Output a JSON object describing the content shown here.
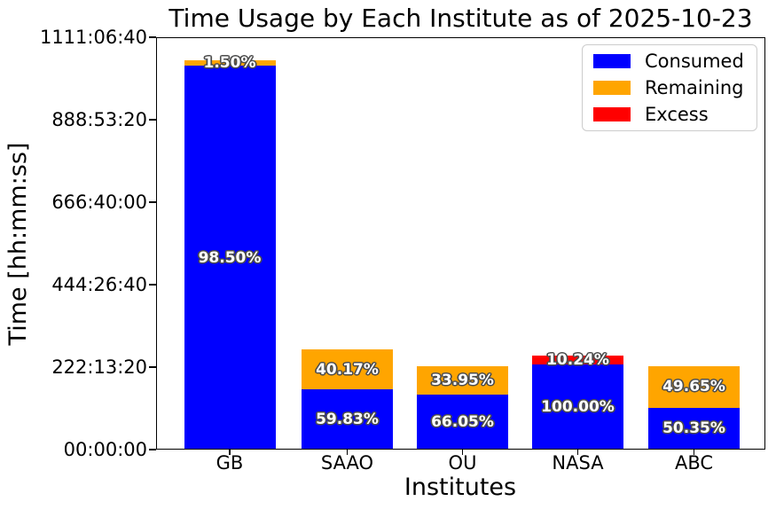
{
  "title": "Time Usage by Each Institute as of 2025-10-23",
  "axes": {
    "ylabel": "Time [hh:mm:ss]",
    "xlabel": "Institutes",
    "y_ticks": [
      "1111:06:40",
      "888:53:20",
      "666:40:00",
      "444:26:40",
      "222:13:20",
      "00:00:00"
    ],
    "x_ticks": [
      "GB",
      "SAAO",
      "OU",
      "NASA",
      "ABC"
    ]
  },
  "legend": {
    "items": [
      {
        "label": "Consumed",
        "color": "#0000ff"
      },
      {
        "label": "Remaining",
        "color": "#ffa500"
      },
      {
        "label": "Excess",
        "color": "#ff0000"
      }
    ]
  },
  "colors": {
    "consumed": "#0000ff",
    "remaining": "#ffa500",
    "excess": "#ff0000",
    "bar_label_fill": "#ffffff",
    "bar_label_outline": "#4d4d4d"
  },
  "chart_data": {
    "type": "bar",
    "stacked": true,
    "title": "Time Usage by Each Institute as of 2025-10-23",
    "xlabel": "Institutes",
    "ylabel": "Time [hh:mm:ss]",
    "unit": "seconds",
    "ylim": [
      0,
      4000000
    ],
    "y_tick_interval_seconds": 800000,
    "grid": false,
    "legend_position": "upper right",
    "categories": [
      "GB",
      "SAAO",
      "OU",
      "NASA",
      "ABC"
    ],
    "series": [
      {
        "name": "Consumed",
        "color": "#0000ff",
        "values": [
          3723300,
          581547,
          535005,
          828000,
          407835
        ],
        "labels": [
          "98.50%",
          "59.83%",
          "66.05%",
          "100.00%",
          "50.35%"
        ]
      },
      {
        "name": "Remaining",
        "color": "#ffa500",
        "values": [
          56700,
          390453,
          274995,
          0,
          402165
        ],
        "labels": [
          "1.50%",
          "40.17%",
          "33.95%",
          "",
          "49.65%"
        ]
      },
      {
        "name": "Excess",
        "color": "#ff0000",
        "values": [
          0,
          0,
          0,
          84787,
          0
        ],
        "labels": [
          "",
          "",
          "",
          "10.24%",
          ""
        ]
      }
    ]
  }
}
